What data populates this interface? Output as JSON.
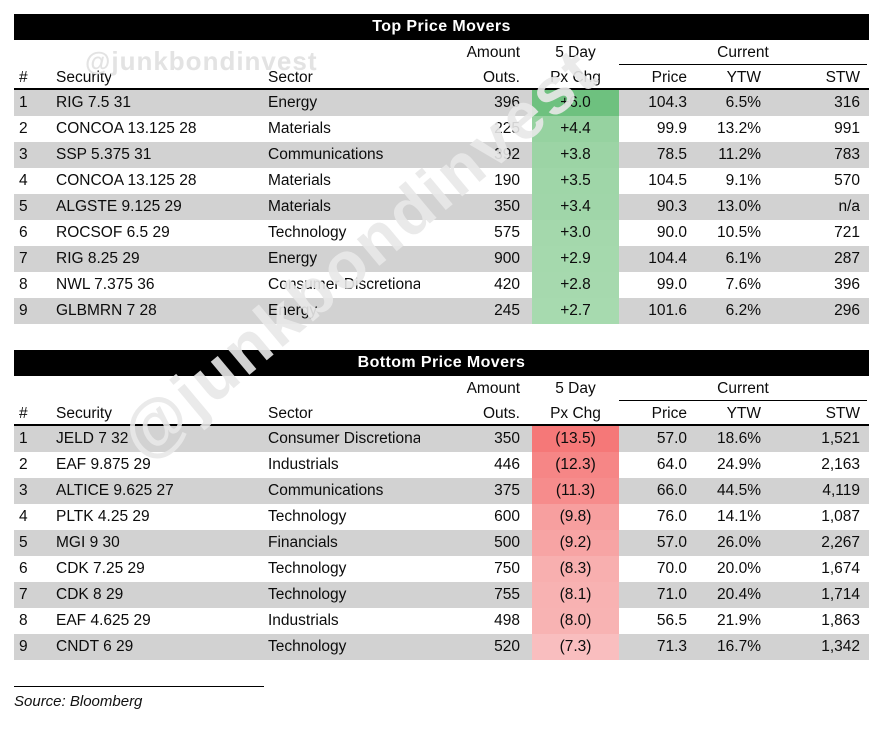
{
  "watermarks": {
    "horizontal": "@junkbondinvest",
    "diagonal": "@junkbondinvest"
  },
  "columns": {
    "rank": "#",
    "security": "Security",
    "sector": "Sector",
    "amount_line1": "Amount",
    "amount_line2": "Outs.",
    "five_day_line1": "5 Day",
    "five_day_line2": "Px Chg",
    "current": "Current",
    "price": "Price",
    "ytw": "YTW",
    "stw": "STW"
  },
  "tables": [
    {
      "title": "Top Price Movers",
      "rows": [
        {
          "num": "1",
          "security": "RIG 7.5 31",
          "sector": "Energy",
          "amount_outs": "396",
          "px_chg_5day": "+6.0",
          "px_chg_bg": "#6ec17f",
          "price": "104.3",
          "ytw": "6.5%",
          "stw": "316"
        },
        {
          "num": "2",
          "security": "CONCOA 13.125 28",
          "sector": "Materials",
          "amount_outs": "225",
          "px_chg_5day": "+4.4",
          "px_chg_bg": "#96d2a0",
          "price": "99.9",
          "ytw": "13.2%",
          "stw": "991"
        },
        {
          "num": "3",
          "security": "SSP 5.375 31",
          "sector": "Communications",
          "amount_outs": "392",
          "px_chg_5day": "+3.8",
          "px_chg_bg": "#9cd4a5",
          "price": "78.5",
          "ytw": "11.2%",
          "stw": "783"
        },
        {
          "num": "4",
          "security": "CONCOA 13.125 28",
          "sector": "Materials",
          "amount_outs": "190",
          "px_chg_5day": "+3.5",
          "px_chg_bg": "#9fd6a8",
          "price": "104.5",
          "ytw": "9.1%",
          "stw": "570"
        },
        {
          "num": "5",
          "security": "ALGSTE 9.125 29",
          "sector": "Materials",
          "amount_outs": "350",
          "px_chg_5day": "+3.4",
          "px_chg_bg": "#a0d6a9",
          "price": "90.3",
          "ytw": "13.0%",
          "stw": "n/a"
        },
        {
          "num": "6",
          "security": "ROCSOF 6.5 29",
          "sector": "Technology",
          "amount_outs": "575",
          "px_chg_5day": "+3.0",
          "px_chg_bg": "#a4d8ac",
          "price": "90.0",
          "ytw": "10.5%",
          "stw": "721"
        },
        {
          "num": "7",
          "security": "RIG 8.25 29",
          "sector": "Energy",
          "amount_outs": "900",
          "px_chg_5day": "+2.9",
          "px_chg_bg": "#a5d9ad",
          "price": "104.4",
          "ytw": "6.1%",
          "stw": "287"
        },
        {
          "num": "8",
          "security": "NWL 7.375 36",
          "sector": "Consumer Discretionary",
          "amount_outs": "420",
          "px_chg_5day": "+2.8",
          "px_chg_bg": "#a6d9ae",
          "price": "99.0",
          "ytw": "7.6%",
          "stw": "396"
        },
        {
          "num": "9",
          "security": "GLBMRN 7 28",
          "sector": "Energy",
          "amount_outs": "245",
          "px_chg_5day": "+2.7",
          "px_chg_bg": "#a7daaf",
          "price": "101.6",
          "ytw": "6.2%",
          "stw": "296"
        }
      ]
    },
    {
      "title": "Bottom Price Movers",
      "rows": [
        {
          "num": "1",
          "security": "JELD 7 32",
          "sector": "Consumer Discretionary",
          "amount_outs": "350",
          "px_chg_5day": "(13.5)",
          "px_chg_bg": "#f57878",
          "price": "57.0",
          "ytw": "18.6%",
          "stw": "1,521"
        },
        {
          "num": "2",
          "security": "EAF 9.875 29",
          "sector": "Industrials",
          "amount_outs": "446",
          "px_chg_5day": "(12.3)",
          "px_chg_bg": "#f68686",
          "price": "64.0",
          "ytw": "24.9%",
          "stw": "2,163"
        },
        {
          "num": "3",
          "security": "ALTICE 9.625 27",
          "sector": "Communications",
          "amount_outs": "375",
          "px_chg_5day": "(11.3)",
          "px_chg_bg": "#f68c8c",
          "price": "66.0",
          "ytw": "44.5%",
          "stw": "4,119"
        },
        {
          "num": "4",
          "security": "PLTK 4.25 29",
          "sector": "Technology",
          "amount_outs": "600",
          "px_chg_5day": "(9.8)",
          "px_chg_bg": "#f79f9f",
          "price": "76.0",
          "ytw": "14.1%",
          "stw": "1,087"
        },
        {
          "num": "5",
          "security": "MGI 9 30",
          "sector": "Financials",
          "amount_outs": "500",
          "px_chg_5day": "(9.2)",
          "px_chg_bg": "#f7a4a4",
          "price": "57.0",
          "ytw": "26.0%",
          "stw": "2,267"
        },
        {
          "num": "6",
          "security": "CDK 7.25 29",
          "sector": "Technology",
          "amount_outs": "750",
          "px_chg_5day": "(8.3)",
          "px_chg_bg": "#f8afaf",
          "price": "70.0",
          "ytw": "20.0%",
          "stw": "1,674"
        },
        {
          "num": "7",
          "security": "CDK 8 29",
          "sector": "Technology",
          "amount_outs": "755",
          "px_chg_5day": "(8.1)",
          "px_chg_bg": "#f8b2b2",
          "price": "71.0",
          "ytw": "20.4%",
          "stw": "1,714"
        },
        {
          "num": "8",
          "security": "EAF 4.625 29",
          "sector": "Industrials",
          "amount_outs": "498",
          "px_chg_5day": "(8.0)",
          "px_chg_bg": "#f8b3b3",
          "price": "56.5",
          "ytw": "21.9%",
          "stw": "1,863"
        },
        {
          "num": "9",
          "security": "CNDT 6 29",
          "sector": "Technology",
          "amount_outs": "520",
          "px_chg_5day": "(7.3)",
          "px_chg_bg": "#f9bebf",
          "price": "71.3",
          "ytw": "16.7%",
          "stw": "1,342"
        }
      ]
    }
  ],
  "source": {
    "text": "Source: Bloomberg"
  },
  "colors": {
    "header_bar": "#000000",
    "row_stripe": "#d2d2d2",
    "positive_accent": "#6ec17f",
    "negative_accent": "#f57878",
    "watermark": "#e3e3e3"
  }
}
